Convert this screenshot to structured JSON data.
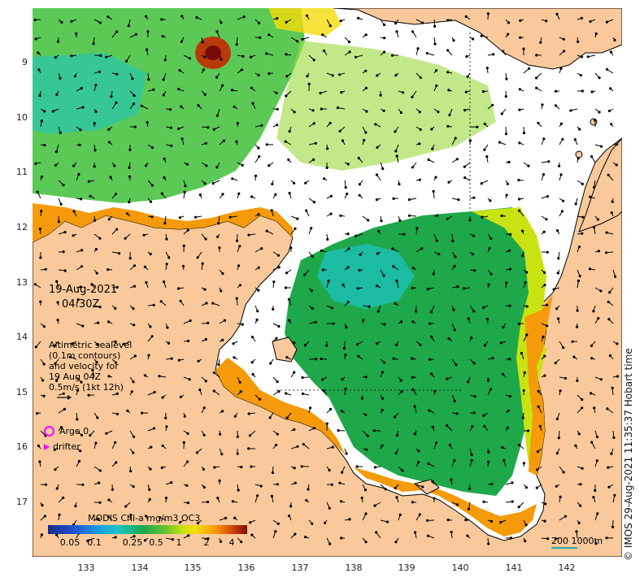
{
  "map": {
    "date": "19-Aug-2021",
    "time": "04:30Z",
    "legend_lines": [
      "Altimetric sealevel",
      "(0.1m contours)",
      "and velocity for",
      "19 Aug 04Z",
      "0.5m/s (1kt 12h)"
    ],
    "argo_label": "Argo 0",
    "drifter_label": "drifter",
    "colorbar_title": "MODIS Chl-a mg/m3 OC3",
    "colorbar_ticks": [
      "0.05",
      "0.1",
      "0.25",
      "0.5",
      "1",
      "2",
      "4"
    ],
    "scale_label": "200  1000m",
    "credit": "© IMOS 29-Aug-2021 11:35:37 Hobart time",
    "lat_ticks": [
      "9",
      "10",
      "11",
      "12",
      "13",
      "14",
      "15",
      "16",
      "17"
    ],
    "lon_ticks": [
      "133",
      "134",
      "135",
      "136",
      "137",
      "138",
      "139",
      "140",
      "141",
      "142"
    ],
    "colors": {
      "land": "#f9c99b",
      "water_nodata": "#ffffff",
      "chl_low": "#1ca84a",
      "chl_mid": "#c9e312",
      "chl_high": "#f59a0a",
      "chl_max": "#8a1a0a",
      "marker": "#ff00ff"
    }
  }
}
